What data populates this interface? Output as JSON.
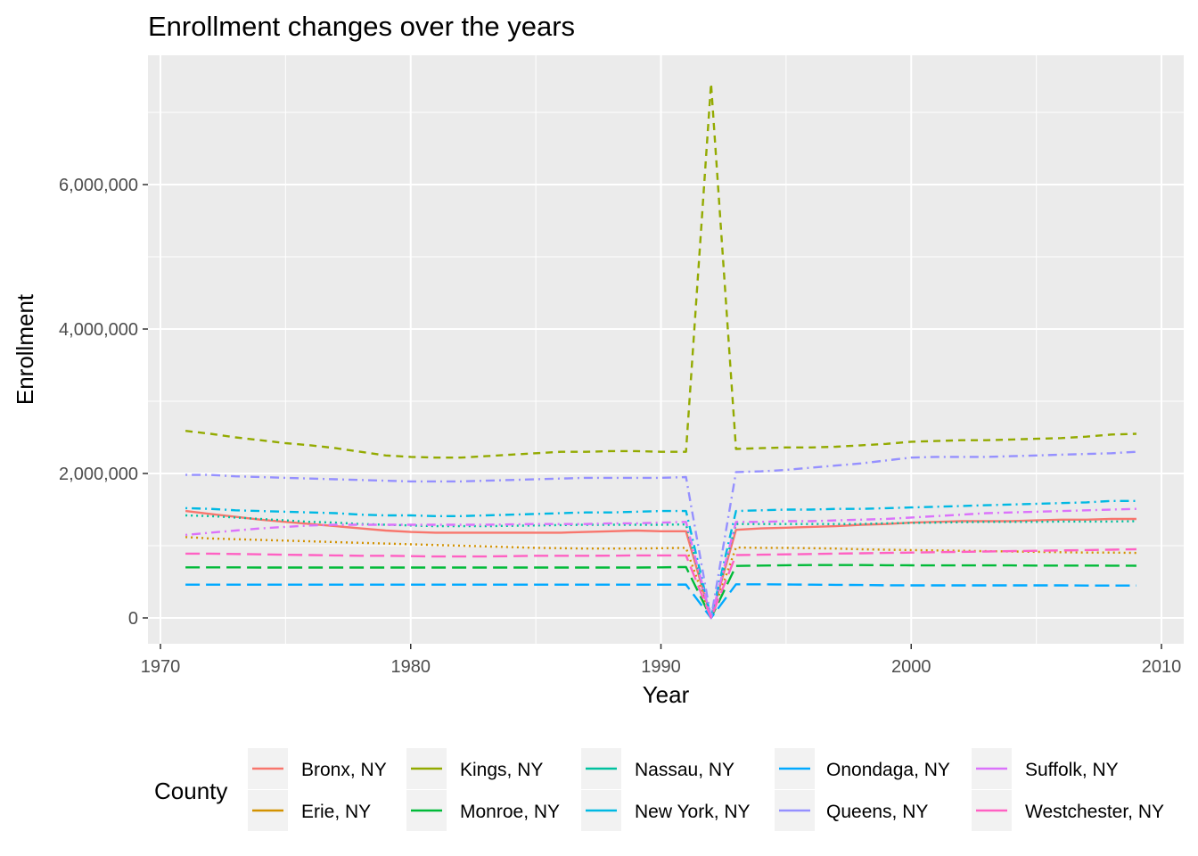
{
  "chart_data": {
    "type": "line",
    "title": "Enrollment changes over the years",
    "xlabel": "Year",
    "ylabel": "Enrollment",
    "xlim": [
      1970,
      2010
    ],
    "ylim": [
      -350000,
      7500000
    ],
    "x_ticks": [
      1970,
      1980,
      1990,
      2000,
      2010
    ],
    "y_ticks": [
      0,
      2000000,
      4000000,
      6000000
    ],
    "y_tick_labels": [
      "0",
      "2,000,000",
      "4,000,000",
      "6,000,000"
    ],
    "grid": true,
    "legend": {
      "title": "County",
      "position": "bottom"
    },
    "x": [
      1971,
      1972,
      1973,
      1974,
      1975,
      1976,
      1977,
      1978,
      1979,
      1980,
      1981,
      1982,
      1983,
      1984,
      1985,
      1986,
      1987,
      1988,
      1989,
      1990,
      1991,
      1992,
      1993,
      1994,
      1995,
      1996,
      1997,
      1998,
      1999,
      2000,
      2001,
      2002,
      2003,
      2004,
      2005,
      2006,
      2007,
      2008,
      2009
    ],
    "series": [
      {
        "name": "Bronx, NY",
        "color": "#F8766D",
        "dash": "solid",
        "values": [
          1480000,
          1440000,
          1400000,
          1360000,
          1330000,
          1300000,
          1270000,
          1240000,
          1210000,
          1190000,
          1180000,
          1180000,
          1180000,
          1180000,
          1180000,
          1180000,
          1190000,
          1200000,
          1210000,
          1200000,
          1200000,
          0,
          1220000,
          1240000,
          1250000,
          1260000,
          1270000,
          1290000,
          1300000,
          1320000,
          1330000,
          1340000,
          1340000,
          1340000,
          1350000,
          1360000,
          1360000,
          1370000,
          1370000
        ]
      },
      {
        "name": "Erie, NY",
        "color": "#D39200",
        "dash": "dotted",
        "values": [
          1120000,
          1100000,
          1090000,
          1080000,
          1070000,
          1060000,
          1050000,
          1040000,
          1030000,
          1020000,
          1010000,
          1000000,
          990000,
          980000,
          970000,
          965000,
          960000,
          960000,
          960000,
          965000,
          970000,
          0,
          975000,
          970000,
          970000,
          965000,
          960000,
          950000,
          945000,
          940000,
          935000,
          930000,
          925000,
          920000,
          915000,
          910000,
          905000,
          905000,
          900000
        ]
      },
      {
        "name": "Kings, NY",
        "color": "#93AA00",
        "dash": "dashed",
        "values": [
          2590000,
          2550000,
          2500000,
          2460000,
          2420000,
          2390000,
          2350000,
          2300000,
          2250000,
          2230000,
          2220000,
          2220000,
          2240000,
          2260000,
          2280000,
          2300000,
          2300000,
          2310000,
          2310000,
          2300000,
          2300000,
          7400000,
          2340000,
          2350000,
          2360000,
          2360000,
          2370000,
          2390000,
          2410000,
          2440000,
          2450000,
          2460000,
          2460000,
          2470000,
          2480000,
          2490000,
          2510000,
          2540000,
          2550000
        ]
      },
      {
        "name": "Monroe, NY",
        "color": "#00BA38",
        "dash": "longdash",
        "values": [
          700000,
          700000,
          700000,
          698000,
          697000,
          697000,
          697000,
          697000,
          697000,
          697000,
          697000,
          697000,
          697000,
          697000,
          697000,
          697000,
          697000,
          697000,
          697000,
          700000,
          705000,
          0,
          720000,
          725000,
          730000,
          732000,
          732000,
          732000,
          730000,
          728000,
          727000,
          727000,
          727000,
          727000,
          725000,
          725000,
          725000,
          723000,
          722000
        ]
      },
      {
        "name": "Nassau, NY",
        "color": "#00C19F",
        "dash": "dotted",
        "values": [
          1420000,
          1410000,
          1390000,
          1370000,
          1350000,
          1330000,
          1320000,
          1300000,
          1290000,
          1280000,
          1270000,
          1270000,
          1270000,
          1275000,
          1280000,
          1285000,
          1290000,
          1290000,
          1290000,
          1290000,
          1295000,
          0,
          1300000,
          1300000,
          1300000,
          1300000,
          1300000,
          1300000,
          1310000,
          1315000,
          1320000,
          1325000,
          1330000,
          1330000,
          1330000,
          1335000,
          1335000,
          1335000,
          1340000
        ]
      },
      {
        "name": "New York, NY",
        "color": "#00B9E3",
        "dash": "dotdash",
        "values": [
          1520000,
          1510000,
          1490000,
          1480000,
          1470000,
          1460000,
          1450000,
          1430000,
          1420000,
          1420000,
          1410000,
          1410000,
          1420000,
          1430000,
          1440000,
          1450000,
          1460000,
          1460000,
          1470000,
          1480000,
          1480000,
          0,
          1480000,
          1490000,
          1500000,
          1500000,
          1510000,
          1510000,
          1520000,
          1530000,
          1540000,
          1550000,
          1560000,
          1570000,
          1580000,
          1590000,
          1600000,
          1620000,
          1620000
        ]
      },
      {
        "name": "Onondaga, NY",
        "color": "#00A9FF",
        "dash": "longdash",
        "values": [
          460000,
          460000,
          460000,
          460000,
          460000,
          460000,
          460000,
          460000,
          460000,
          460000,
          460000,
          460000,
          460000,
          460000,
          460000,
          460000,
          460000,
          460000,
          460000,
          460000,
          462000,
          0,
          465000,
          465000,
          463000,
          460000,
          458000,
          455000,
          452000,
          450000,
          450000,
          450000,
          450000,
          450000,
          450000,
          450000,
          448000,
          448000,
          448000
        ]
      },
      {
        "name": "Queens, NY",
        "color": "#9590FF",
        "dash": "dotdash",
        "values": [
          1980000,
          1980000,
          1960000,
          1950000,
          1940000,
          1930000,
          1920000,
          1910000,
          1900000,
          1890000,
          1890000,
          1890000,
          1900000,
          1910000,
          1920000,
          1930000,
          1940000,
          1940000,
          1940000,
          1940000,
          1950000,
          0,
          2020000,
          2030000,
          2050000,
          2080000,
          2110000,
          2140000,
          2180000,
          2220000,
          2230000,
          2230000,
          2230000,
          2240000,
          2250000,
          2260000,
          2270000,
          2280000,
          2300000
        ]
      },
      {
        "name": "Suffolk, NY",
        "color": "#DB72FB",
        "dash": "dotdash",
        "values": [
          1150000,
          1180000,
          1210000,
          1240000,
          1260000,
          1280000,
          1290000,
          1290000,
          1290000,
          1290000,
          1290000,
          1290000,
          1290000,
          1295000,
          1300000,
          1300000,
          1300000,
          1310000,
          1310000,
          1320000,
          1330000,
          0,
          1330000,
          1330000,
          1340000,
          1340000,
          1350000,
          1360000,
          1370000,
          1390000,
          1410000,
          1430000,
          1450000,
          1460000,
          1470000,
          1480000,
          1490000,
          1500000,
          1510000
        ]
      },
      {
        "name": "Westchester, NY",
        "color": "#FF61C3",
        "dash": "longdash",
        "values": [
          890000,
          890000,
          885000,
          880000,
          875000,
          870000,
          865000,
          860000,
          860000,
          855000,
          850000,
          850000,
          850000,
          855000,
          860000,
          860000,
          860000,
          862000,
          865000,
          865000,
          865000,
          0,
          870000,
          875000,
          880000,
          885000,
          890000,
          895000,
          900000,
          905000,
          910000,
          915000,
          920000,
          925000,
          930000,
          935000,
          940000,
          945000,
          950000
        ]
      }
    ]
  }
}
